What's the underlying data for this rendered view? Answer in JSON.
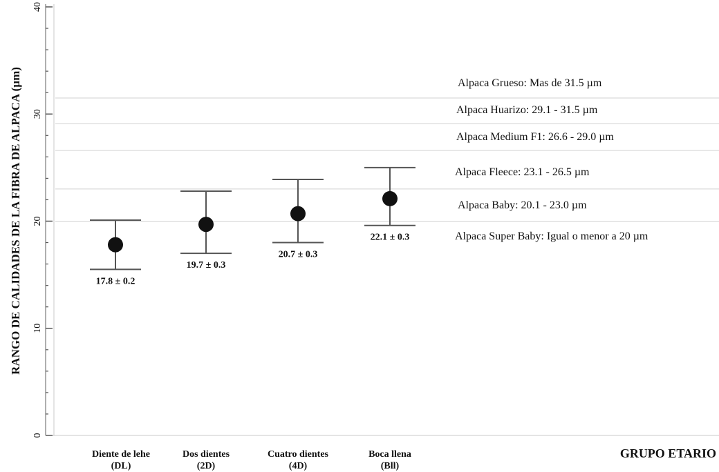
{
  "chart_data": {
    "type": "scatter",
    "ylabel": "RANGO DE CALIDADES DE LA FIBRA DE ALPACA (µm)",
    "xlabel": "GRUPO ETARIO",
    "ylim": [
      0,
      40
    ],
    "yticks": [
      0,
      10,
      20,
      30,
      40
    ],
    "categories": [
      {
        "line1": "Diente de lehe",
        "line2": "(DL)"
      },
      {
        "line1": "Dos dientes",
        "line2": "(2D)"
      },
      {
        "line1": "Cuatro dientes",
        "line2": "(4D)"
      },
      {
        "line1": "Boca llena",
        "line2": "(Bll)"
      }
    ],
    "points": [
      {
        "mean": 17.8,
        "low": 15.5,
        "high": 20.1,
        "label": "17.8 ± 0.2"
      },
      {
        "mean": 19.7,
        "low": 17.0,
        "high": 22.8,
        "label": "19.7 ± 0.3"
      },
      {
        "mean": 20.7,
        "low": 18.0,
        "high": 23.9,
        "label": "20.7 ± 0.3"
      },
      {
        "mean": 22.1,
        "low": 19.6,
        "high": 25.0,
        "label": "22.1 ± 0.3"
      }
    ],
    "reference_lines": [
      20.0,
      23.0,
      26.6,
      29.1,
      31.5
    ],
    "bands": [
      {
        "label": "Alpaca Grueso: Mas de 31.5 µm",
        "y": 32.9
      },
      {
        "label": "Alpaca Huarizo: 29.1 - 31.5 µm",
        "y": 30.4
      },
      {
        "label": "Alpaca Medium F1: 26.6 - 29.0 µm",
        "y": 27.9
      },
      {
        "label": "Alpaca Fleece: 23.1 - 26.5 µm",
        "y": 24.6
      },
      {
        "label": "Alpaca Baby:  20.1 - 23.0 µm",
        "y": 21.5
      },
      {
        "label": "Alpaca Super Baby:  Igual o menor a 20 µm",
        "y": 18.6
      }
    ],
    "grid": false,
    "legend": "none"
  }
}
